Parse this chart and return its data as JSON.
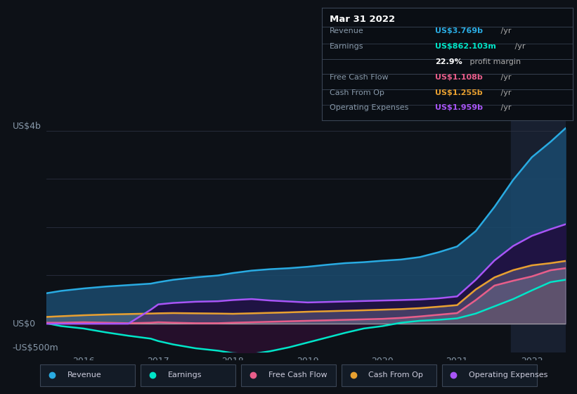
{
  "background_color": "#0d1117",
  "plot_bg_color": "#0d1117",
  "grid_color": "#2a3040",
  "text_color": "#8899aa",
  "title_color": "#ffffff",
  "y_label_top": "US$4b",
  "y_label_zero": "US$0",
  "y_label_neg": "-US$500m",
  "x_ticks": [
    2016,
    2017,
    2018,
    2019,
    2020,
    2021,
    2022
  ],
  "ylim": [
    -600,
    4300
  ],
  "xlim": [
    2015.5,
    2022.45
  ],
  "series": {
    "revenue": {
      "color": "#29abe2",
      "fill_color": "#1a4a6e",
      "label": "Revenue",
      "values_x": [
        2015.5,
        2015.7,
        2016.0,
        2016.3,
        2016.6,
        2016.9,
        2017.0,
        2017.2,
        2017.5,
        2017.8,
        2018.0,
        2018.25,
        2018.5,
        2018.75,
        2019.0,
        2019.25,
        2019.5,
        2019.75,
        2020.0,
        2020.25,
        2020.5,
        2020.75,
        2021.0,
        2021.25,
        2021.5,
        2021.75,
        2022.0,
        2022.25,
        2022.45
      ],
      "values_y": [
        630,
        680,
        730,
        770,
        800,
        830,
        860,
        910,
        960,
        1000,
        1050,
        1100,
        1130,
        1150,
        1180,
        1220,
        1255,
        1275,
        1305,
        1330,
        1380,
        1480,
        1600,
        1920,
        2420,
        2980,
        3450,
        3769,
        4050
      ]
    },
    "earnings": {
      "color": "#00e5c8",
      "fill_color": "#003830",
      "label": "Earnings",
      "values_x": [
        2015.5,
        2015.7,
        2016.0,
        2016.3,
        2016.6,
        2016.9,
        2017.0,
        2017.2,
        2017.5,
        2017.8,
        2018.0,
        2018.25,
        2018.5,
        2018.75,
        2019.0,
        2019.25,
        2019.5,
        2019.75,
        2020.0,
        2020.25,
        2020.5,
        2020.75,
        2021.0,
        2021.25,
        2021.5,
        2021.75,
        2022.0,
        2022.25,
        2022.45
      ],
      "values_y": [
        10,
        -50,
        -100,
        -180,
        -250,
        -310,
        -360,
        -430,
        -510,
        -560,
        -610,
        -630,
        -570,
        -490,
        -390,
        -290,
        -190,
        -100,
        -50,
        20,
        60,
        80,
        110,
        210,
        360,
        510,
        690,
        862,
        910
      ]
    },
    "free_cash_flow": {
      "color": "#e85d8a",
      "fill_color": "#4a1025",
      "label": "Free Cash Flow",
      "values_x": [
        2015.5,
        2015.7,
        2016.0,
        2016.3,
        2016.6,
        2016.9,
        2017.0,
        2017.2,
        2017.5,
        2017.8,
        2018.0,
        2018.25,
        2018.5,
        2018.75,
        2019.0,
        2019.25,
        2019.5,
        2019.75,
        2020.0,
        2020.25,
        2020.5,
        2020.75,
        2021.0,
        2021.25,
        2021.5,
        2021.75,
        2022.0,
        2022.25,
        2022.45
      ],
      "values_y": [
        20,
        20,
        30,
        20,
        10,
        20,
        30,
        20,
        10,
        10,
        20,
        30,
        40,
        50,
        60,
        70,
        80,
        90,
        100,
        120,
        150,
        185,
        220,
        490,
        790,
        890,
        980,
        1108,
        1150
      ]
    },
    "cash_from_op": {
      "color": "#e8a030",
      "fill_color": "#3a2808",
      "label": "Cash From Op",
      "values_x": [
        2015.5,
        2015.7,
        2016.0,
        2016.3,
        2016.6,
        2016.9,
        2017.0,
        2017.2,
        2017.5,
        2017.8,
        2018.0,
        2018.25,
        2018.5,
        2018.75,
        2019.0,
        2019.25,
        2019.5,
        2019.75,
        2020.0,
        2020.25,
        2020.5,
        2020.75,
        2021.0,
        2021.25,
        2021.5,
        2021.75,
        2022.0,
        2022.25,
        2022.45
      ],
      "values_y": [
        140,
        155,
        175,
        190,
        200,
        210,
        215,
        220,
        215,
        210,
        205,
        215,
        225,
        235,
        248,
        258,
        268,
        278,
        290,
        302,
        322,
        352,
        385,
        710,
        960,
        1110,
        1210,
        1255,
        1300
      ]
    },
    "operating_expenses": {
      "color": "#a855f7",
      "fill_color": "#200e40",
      "label": "Operating Expenses",
      "values_x": [
        2015.5,
        2015.7,
        2016.0,
        2016.3,
        2016.6,
        2016.9,
        2017.0,
        2017.2,
        2017.5,
        2017.8,
        2018.0,
        2018.25,
        2018.5,
        2018.75,
        2019.0,
        2019.25,
        2019.5,
        2019.75,
        2020.0,
        2020.25,
        2020.5,
        2020.75,
        2021.0,
        2021.25,
        2021.5,
        2021.75,
        2022.0,
        2022.25,
        2022.45
      ],
      "values_y": [
        0,
        0,
        0,
        0,
        0,
        290,
        400,
        430,
        455,
        465,
        490,
        510,
        480,
        460,
        440,
        450,
        460,
        470,
        480,
        490,
        502,
        525,
        565,
        910,
        1310,
        1610,
        1820,
        1959,
        2060
      ]
    }
  },
  "tooltip": {
    "title": "Mar 31 2022",
    "rows": [
      {
        "label": "Revenue",
        "value": "US$3.769b",
        "suffix": " /yr",
        "value_color": "#29abe2"
      },
      {
        "label": "Earnings",
        "value": "US$862.103m",
        "suffix": " /yr",
        "value_color": "#00e5c8"
      },
      {
        "label": "",
        "bold_value": "22.9%",
        "rest_value": " profit margin",
        "value_color": "#ffffff"
      },
      {
        "label": "Free Cash Flow",
        "value": "US$1.108b",
        "suffix": " /yr",
        "value_color": "#e85d8a"
      },
      {
        "label": "Cash From Op",
        "value": "US$1.255b",
        "suffix": " /yr",
        "value_color": "#e8a030"
      },
      {
        "label": "Operating Expenses",
        "value": "US$1.959b",
        "suffix": " /yr",
        "value_color": "#a855f7"
      }
    ],
    "bg_color": "#0a0e14",
    "border_color": "#3a4555",
    "title_color": "#ffffff",
    "label_color": "#8899aa"
  },
  "highlight_x_start": 2021.72,
  "highlight_bg": "#182030",
  "legend": {
    "items": [
      {
        "label": "Revenue",
        "color": "#29abe2"
      },
      {
        "label": "Earnings",
        "color": "#00e5c8"
      },
      {
        "label": "Free Cash Flow",
        "color": "#e85d8a"
      },
      {
        "label": "Cash From Op",
        "color": "#e8a030"
      },
      {
        "label": "Operating Expenses",
        "color": "#a855f7"
      }
    ]
  }
}
